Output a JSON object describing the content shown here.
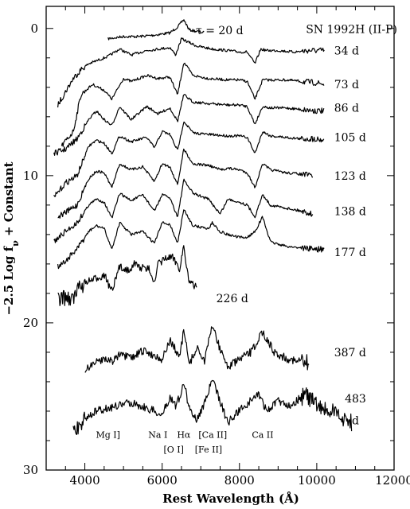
{
  "chart_data": {
    "type": "line",
    "title": "SN 1992H (II-P)",
    "xlabel": "Rest Wavelength (Å)",
    "ylabel": "−2.5 Log f",
    "ylabel_sub": "ν",
    "ylabel_suffix": " + Constant",
    "xlim": [
      3000,
      12000
    ],
    "ylim": [
      30,
      -1.5
    ],
    "x_ticks": [
      4000,
      6000,
      8000,
      10000,
      12000
    ],
    "y_ticks": [
      0,
      10,
      20,
      30
    ],
    "tau_label": "τ = 20 d",
    "series": [
      {
        "name": "20 d",
        "label": "τ = 20 d",
        "x": [
          4600,
          5000,
          5400,
          5800,
          6200,
          6400,
          6560,
          6700,
          6900,
          7100
        ],
        "y": [
          0.7,
          0.55,
          0.55,
          0.45,
          0.3,
          -0.1,
          -0.6,
          0.1,
          0.2,
          0.3
        ]
      },
      {
        "name": "34 d",
        "label": "34 d",
        "x": [
          3300,
          3500,
          3700,
          3900,
          4100,
          4300,
          4600,
          4900,
          5200,
          5600,
          5900,
          6200,
          6350,
          6500,
          6650,
          6900,
          7300,
          7700,
          8000,
          8200,
          8400,
          8550,
          8700,
          9000,
          9400,
          9800,
          10200
        ],
        "y": [
          5.2,
          4.3,
          3.4,
          2.8,
          2.4,
          2.2,
          1.9,
          1.4,
          1.8,
          1.5,
          1.4,
          1.3,
          1.8,
          0.7,
          0.9,
          1.2,
          1.4,
          1.5,
          1.6,
          1.6,
          2.4,
          1.4,
          1.5,
          1.5,
          1.6,
          1.5,
          1.5
        ]
      },
      {
        "name": "73 d",
        "label": "73 d",
        "x": [
          3400,
          3700,
          3900,
          4200,
          4500,
          4700,
          5000,
          5200,
          5600,
          5900,
          6200,
          6400,
          6560,
          6800,
          7200,
          7700,
          8000,
          8200,
          8400,
          8600,
          8800,
          9200,
          9600,
          10000,
          10200
        ],
        "y": [
          8.0,
          7.0,
          4.5,
          3.8,
          4.2,
          4.8,
          3.4,
          3.6,
          3.2,
          3.4,
          3.3,
          4.5,
          2.3,
          3.2,
          3.4,
          3.5,
          3.5,
          3.6,
          4.8,
          3.5,
          3.5,
          3.5,
          3.6,
          3.7,
          3.8
        ]
      },
      {
        "name": "86 d",
        "label": "86 d",
        "x": [
          3200,
          3500,
          3800,
          4100,
          4300,
          4500,
          4700,
          4900,
          5200,
          5600,
          5900,
          6200,
          6400,
          6560,
          6800,
          7200,
          7700,
          8000,
          8200,
          8400,
          8600,
          8800,
          9200,
          9600,
          10000,
          10200
        ],
        "y": [
          8.5,
          8.2,
          7.5,
          6.2,
          5.6,
          6.2,
          6.6,
          5.3,
          6.2,
          5.3,
          5.8,
          5.4,
          6.3,
          4.5,
          5.0,
          5.1,
          5.2,
          5.2,
          5.3,
          6.5,
          5.3,
          5.4,
          5.4,
          5.5,
          5.6,
          5.6
        ]
      },
      {
        "name": "105 d",
        "label": "105 d",
        "x": [
          3200,
          3500,
          3800,
          4100,
          4300,
          4500,
          4700,
          4900,
          5200,
          5600,
          5800,
          6000,
          6200,
          6400,
          6560,
          6800,
          7200,
          7700,
          8000,
          8200,
          8400,
          8600,
          8800,
          9200,
          9600,
          10000,
          10200
        ],
        "y": [
          11.5,
          10.5,
          10.0,
          8.0,
          7.6,
          7.8,
          8.5,
          7.3,
          7.7,
          7.4,
          8.1,
          7.0,
          7.2,
          8.3,
          6.3,
          7.1,
          7.2,
          7.3,
          7.3,
          7.4,
          8.5,
          7.0,
          7.3,
          7.4,
          7.5,
          7.5,
          7.6
        ]
      },
      {
        "name": "123 d",
        "label": "123 d",
        "x": [
          3300,
          3500,
          3800,
          4100,
          4300,
          4500,
          4700,
          4900,
          5200,
          5500,
          5800,
          6000,
          6200,
          6400,
          6560,
          6800,
          7200,
          7500,
          7700,
          8000,
          8200,
          8400,
          8600,
          8800,
          9200,
          9600,
          9900
        ],
        "y": [
          12.8,
          12.5,
          12.0,
          10.2,
          9.7,
          9.8,
          10.8,
          9.2,
          9.6,
          9.4,
          10.4,
          9.2,
          9.4,
          10.6,
          8.2,
          9.2,
          9.3,
          9.6,
          9.5,
          9.6,
          9.8,
          10.8,
          9.2,
          9.6,
          9.8,
          9.9,
          10.0
        ]
      },
      {
        "name": "138 d",
        "label": "138 d",
        "x": [
          3200,
          3500,
          3800,
          4100,
          4300,
          4500,
          4700,
          4900,
          5200,
          5500,
          5800,
          6000,
          6200,
          6400,
          6560,
          6800,
          7200,
          7500,
          7700,
          8000,
          8200,
          8400,
          8600,
          8800,
          9200,
          9600,
          9900
        ],
        "y": [
          14.5,
          13.8,
          13.2,
          12.0,
          11.6,
          11.8,
          12.9,
          11.2,
          11.7,
          11.3,
          12.4,
          11.3,
          11.5,
          12.8,
          10.3,
          11.2,
          11.6,
          12.6,
          11.6,
          11.8,
          12.0,
          12.8,
          11.3,
          12.0,
          12.2,
          12.4,
          12.6
        ]
      },
      {
        "name": "177 d",
        "label": "177 d",
        "x": [
          3300,
          3500,
          3800,
          4100,
          4300,
          4500,
          4700,
          4900,
          5200,
          5500,
          5800,
          6000,
          6200,
          6400,
          6560,
          6800,
          7200,
          7300,
          7500,
          7700,
          8000,
          8200,
          8400,
          8600,
          8800,
          9200,
          9600,
          10000,
          10200
        ],
        "y": [
          16.2,
          15.8,
          15.0,
          13.8,
          13.4,
          13.6,
          15.0,
          13.2,
          14.0,
          13.8,
          14.6,
          13.2,
          13.3,
          14.6,
          12.3,
          13.4,
          13.6,
          13.2,
          13.8,
          14.0,
          14.2,
          14.2,
          13.8,
          12.8,
          14.5,
          14.8,
          14.9,
          15.0,
          15.0
        ]
      },
      {
        "name": "226 d",
        "label": "226 d",
        "x": [
          3300,
          3500,
          3700,
          3900,
          4100,
          4300,
          4500,
          4700,
          4900,
          5100,
          5300,
          5500,
          5700,
          5800,
          5900,
          6100,
          6300,
          6450,
          6560,
          6700,
          6900
        ],
        "y": [
          18.5,
          18.2,
          18.4,
          17.4,
          17.2,
          17.0,
          16.7,
          17.9,
          16.2,
          16.4,
          16.0,
          16.3,
          16.4,
          17.4,
          16.0,
          15.6,
          15.6,
          16.3,
          14.8,
          17.3,
          17.6
        ]
      },
      {
        "name": "387 d",
        "label": "387 d",
        "x": [
          4000,
          4200,
          4500,
          4700,
          4900,
          5200,
          5500,
          5800,
          6000,
          6200,
          6300,
          6450,
          6560,
          6700,
          6900,
          7100,
          7300,
          7500,
          7700,
          8000,
          8300,
          8600,
          8900,
          9200,
          9500,
          9800
        ],
        "y": [
          23.2,
          22.8,
          22.4,
          22.6,
          22.2,
          22.4,
          21.9,
          22.2,
          22.5,
          21.2,
          21.6,
          22.4,
          20.5,
          22.8,
          21.7,
          22.6,
          20.1,
          21.8,
          23.0,
          22.5,
          22.0,
          20.6,
          22.0,
          22.4,
          22.6,
          22.8
        ]
      },
      {
        "name": "483 d",
        "label": "483 d",
        "x": [
          3700,
          3900,
          4100,
          4300,
          4600,
          4900,
          5200,
          5500,
          5800,
          6000,
          6200,
          6350,
          6500,
          6560,
          6700,
          6900,
          7100,
          7300,
          7500,
          7700,
          7900,
          8200,
          8500,
          8700,
          9000,
          9300,
          9700,
          10100,
          10500,
          10900
        ],
        "y": [
          27.4,
          26.8,
          26.3,
          26.0,
          25.8,
          25.6,
          25.4,
          25.7,
          26.0,
          26.3,
          25.0,
          25.6,
          24.8,
          24.0,
          25.8,
          26.6,
          25.4,
          23.9,
          25.3,
          26.8,
          26.2,
          25.5,
          24.8,
          26.0,
          25.3,
          25.6,
          24.9,
          25.8,
          26.2,
          26.8
        ]
      }
    ],
    "line_ids": [
      {
        "text": "Mg I]",
        "x": 4600,
        "y": 27.6
      },
      {
        "text": "Na I",
        "x": 5890,
        "y": 27.6
      },
      {
        "text": "Hα",
        "x": 6560,
        "y": 27.6
      },
      {
        "text": "[Ca II]",
        "x": 7310,
        "y": 27.6
      },
      {
        "text": "Ca II",
        "x": 8600,
        "y": 27.6
      },
      {
        "text": "[O I]",
        "x": 6300,
        "y": 28.6
      },
      {
        "text": "[Fe II]",
        "x": 7200,
        "y": 28.6
      }
    ]
  }
}
